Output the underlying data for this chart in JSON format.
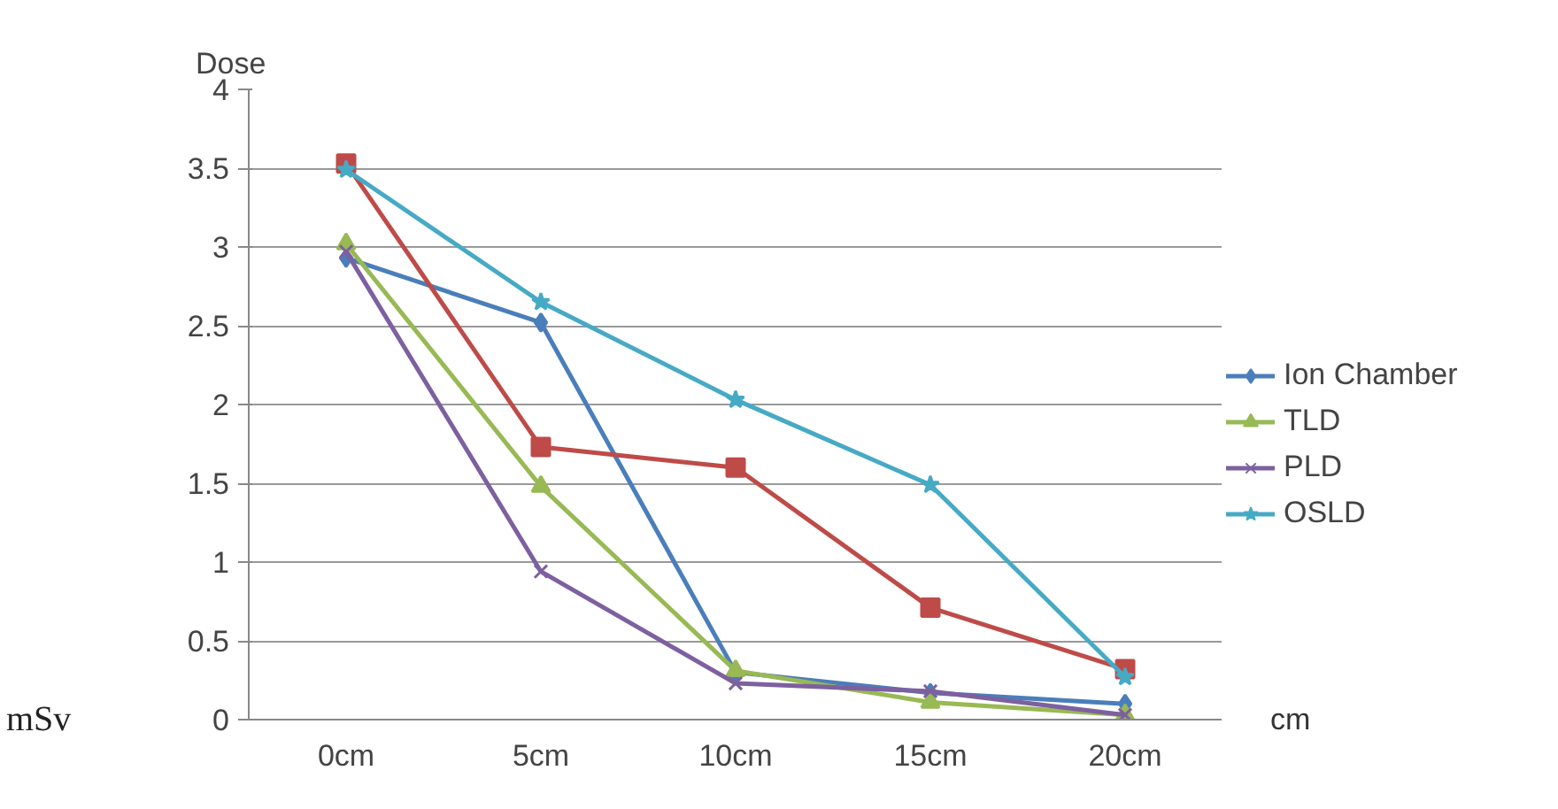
{
  "chart_data": {
    "type": "line",
    "ylabel": "Dose",
    "xlabel": "cm",
    "annotations": [
      "mSv"
    ],
    "categories": [
      "0cm",
      "5cm",
      "10cm",
      "15cm",
      "20cm"
    ],
    "ylim": [
      0,
      4
    ],
    "yticks": [
      0,
      0.5,
      1,
      1.5,
      2,
      2.5,
      3,
      3.5,
      4
    ],
    "grid": "y",
    "legend": "right",
    "line_style": "solid",
    "series": [
      {
        "name": "Ion Chamber",
        "color": "#4a7ebb",
        "marker": "diamond",
        "values": [
          2.93,
          2.52,
          0.3,
          0.17,
          0.1
        ]
      },
      {
        "color": "#be4b48",
        "marker": "square",
        "values": [
          3.53,
          1.73,
          1.6,
          0.71,
          0.32
        ]
      },
      {
        "name": "TLD",
        "color": "#98b954",
        "marker": "triangle",
        "values": [
          3.02,
          1.48,
          0.31,
          0.11,
          0.03
        ]
      },
      {
        "name": "PLD",
        "color": "#7d60a0",
        "marker": "cross",
        "values": [
          2.97,
          0.94,
          0.23,
          0.18,
          0.03
        ]
      },
      {
        "name": "OSLD",
        "color": "#46aac5",
        "marker": "star",
        "values": [
          3.49,
          2.65,
          2.03,
          1.49,
          0.27
        ]
      }
    ]
  }
}
